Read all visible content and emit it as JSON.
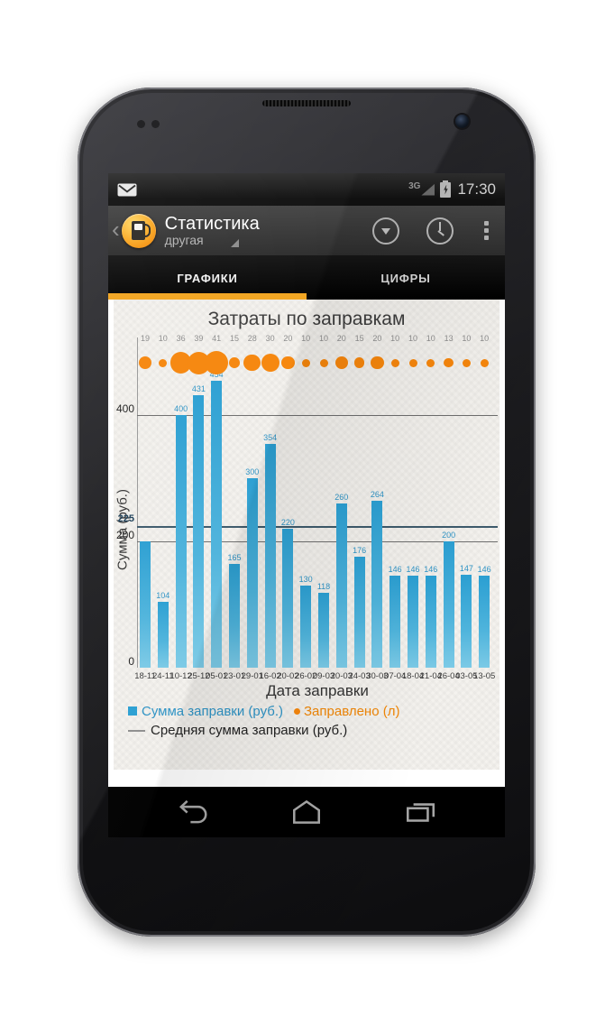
{
  "status_bar": {
    "time": "17:30",
    "network": "3G",
    "icons": [
      "message-icon",
      "signal-strength-icon",
      "battery-charging-icon"
    ]
  },
  "action_bar": {
    "title": "Статистика",
    "subtitle": "другая",
    "icons": [
      "back-chevron-icon",
      "fuel-pump-app-icon",
      "spinner-caret-icon",
      "collapse-dropdown-icon",
      "history-clock-icon",
      "overflow-menu-icon"
    ]
  },
  "tabs": [
    {
      "label": "ГРАФИКИ",
      "active": true
    },
    {
      "label": "ЦИФРЫ",
      "active": false
    }
  ],
  "chart_data": {
    "type": "bar",
    "title": "Затраты по заправкам",
    "xlabel": "Дата заправки",
    "ylabel": "Сумма (руб.)",
    "yticks": [
      0,
      200,
      400
    ],
    "ylim": [
      0,
      470
    ],
    "grid": true,
    "legend_position": "bottom",
    "average_line": {
      "value": 225,
      "label": "225",
      "color": "#3d5a6b"
    },
    "categories": [
      "18-11",
      "24-11",
      "10-12",
      "25-12",
      "05-01",
      "23-01",
      "29-01",
      "16-02",
      "20-02",
      "26-02",
      "09-03",
      "20-03",
      "24-03",
      "30-03",
      "07-04",
      "18-04",
      "21-04",
      "26-04",
      "03-05",
      "13-05"
    ],
    "series": [
      {
        "name": "Сумма заправки (руб.)",
        "type": "bar",
        "color": "#2b9fd2",
        "values": [
          200,
          104,
          400,
          431,
          454,
          165,
          300,
          354,
          220,
          130,
          118,
          260,
          176,
          264,
          146,
          146,
          146,
          200,
          147,
          146
        ],
        "value_labels": [
          "",
          "104",
          "400",
          "431",
          "454",
          "165",
          "300",
          "354",
          "220",
          "130",
          "118",
          "260",
          "176",
          "264",
          "146",
          "146",
          "146",
          "200",
          "147",
          "146"
        ]
      },
      {
        "name": "Заправлено (л)",
        "type": "bubble",
        "color": "#f6860c",
        "values": [
          19,
          10,
          36,
          39,
          41,
          15,
          28,
          30,
          20,
          10,
          10,
          20,
          15,
          20,
          10,
          10,
          10,
          13,
          10,
          10
        ]
      },
      {
        "name": "Средняя сумма заправки (руб.)",
        "type": "line",
        "color": "#3d5a6b",
        "value": 225
      }
    ]
  },
  "nav_bar": {
    "icons": [
      "back-icon",
      "home-icon",
      "recents-icon"
    ]
  },
  "colors": {
    "accent_orange": "#f2a41f",
    "bar_blue": "#2b9fd2",
    "bar_label_blue": "#2e93c5",
    "bubble_orange": "#f6860c",
    "average_line": "#3d5a6b",
    "content_background": "#f4f2ee"
  }
}
